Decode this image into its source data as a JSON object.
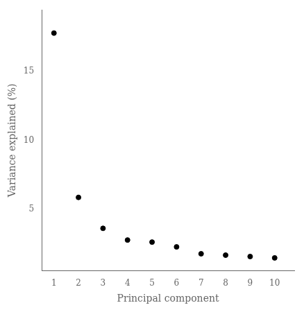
{
  "chart_data": {
    "type": "scatter",
    "x": [
      1,
      2,
      3,
      4,
      5,
      6,
      7,
      8,
      9,
      10
    ],
    "values": [
      17.8,
      5.85,
      3.6,
      2.75,
      2.6,
      2.25,
      1.75,
      1.65,
      1.55,
      1.45
    ],
    "xlabel": "Principal component",
    "ylabel": "Variance explained (%)",
    "color": "#000000",
    "xlim": [
      0.5,
      10.8
    ],
    "ylim": [
      0.5,
      19.5
    ],
    "xticks": [
      1,
      2,
      3,
      4,
      5,
      6,
      7,
      8,
      9,
      10
    ],
    "yticks": [
      5,
      10,
      15
    ],
    "grid": false
  }
}
